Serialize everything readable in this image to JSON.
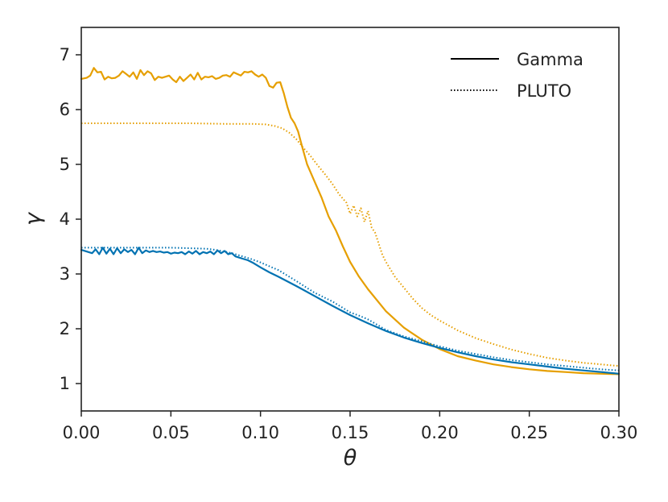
{
  "chart_data": {
    "type": "line",
    "xlabel": "θ",
    "ylabel": "γ",
    "xlim": [
      0.0,
      0.3
    ],
    "ylim": [
      0.5,
      7.5
    ],
    "grid": false,
    "legend_position": "top-right",
    "xticks": [
      0.0,
      0.05,
      0.1,
      0.15,
      0.2,
      0.25,
      0.3
    ],
    "xtick_labels": [
      "0.00",
      "0.05",
      "0.10",
      "0.15",
      "0.20",
      "0.25",
      "0.30"
    ],
    "yticks": [
      1,
      2,
      3,
      4,
      5,
      6,
      7
    ],
    "ytick_labels": [
      "1",
      "2",
      "3",
      "4",
      "5",
      "6",
      "7"
    ],
    "legend": [
      {
        "label": "Gamma",
        "style": "solid"
      },
      {
        "label": "PLUTO",
        "style": "dotted"
      }
    ],
    "colors": {
      "orange": "#e69f00",
      "blue": "#0072b2",
      "axes": "#222222"
    },
    "series": [
      {
        "color": "orange",
        "style": "solid",
        "x": [
          0.0,
          0.003,
          0.005,
          0.007,
          0.009,
          0.011,
          0.013,
          0.015,
          0.017,
          0.019,
          0.021,
          0.023,
          0.025,
          0.027,
          0.029,
          0.031,
          0.033,
          0.035,
          0.037,
          0.039,
          0.041,
          0.043,
          0.045,
          0.047,
          0.049,
          0.051,
          0.053,
          0.055,
          0.057,
          0.059,
          0.061,
          0.063,
          0.065,
          0.067,
          0.069,
          0.071,
          0.073,
          0.075,
          0.077,
          0.079,
          0.081,
          0.083,
          0.085,
          0.087,
          0.089,
          0.091,
          0.093,
          0.095,
          0.097,
          0.099,
          0.101,
          0.103,
          0.105,
          0.107,
          0.109,
          0.111,
          0.113,
          0.115,
          0.117,
          0.119,
          0.121,
          0.123,
          0.126,
          0.13,
          0.134,
          0.138,
          0.142,
          0.146,
          0.15,
          0.155,
          0.16,
          0.17,
          0.18,
          0.19,
          0.2,
          0.21,
          0.22,
          0.23,
          0.24,
          0.25,
          0.26,
          0.27,
          0.28,
          0.29,
          0.3
        ],
        "y": [
          6.56,
          6.58,
          6.62,
          6.76,
          6.68,
          6.69,
          6.55,
          6.6,
          6.57,
          6.58,
          6.62,
          6.7,
          6.65,
          6.6,
          6.68,
          6.56,
          6.72,
          6.63,
          6.7,
          6.66,
          6.54,
          6.6,
          6.58,
          6.6,
          6.62,
          6.55,
          6.5,
          6.6,
          6.52,
          6.58,
          6.64,
          6.55,
          6.67,
          6.55,
          6.6,
          6.59,
          6.61,
          6.56,
          6.58,
          6.62,
          6.63,
          6.6,
          6.68,
          6.65,
          6.62,
          6.69,
          6.68,
          6.7,
          6.64,
          6.6,
          6.64,
          6.58,
          6.43,
          6.4,
          6.49,
          6.5,
          6.3,
          6.05,
          5.85,
          5.75,
          5.6,
          5.35,
          5.0,
          4.7,
          4.4,
          4.05,
          3.8,
          3.5,
          3.22,
          2.95,
          2.72,
          2.32,
          2.02,
          1.8,
          1.63,
          1.5,
          1.42,
          1.35,
          1.3,
          1.26,
          1.23,
          1.21,
          1.19,
          1.18,
          1.17
        ]
      },
      {
        "color": "orange",
        "style": "dotted",
        "x": [
          0.0,
          0.02,
          0.04,
          0.06,
          0.08,
          0.095,
          0.103,
          0.108,
          0.112,
          0.116,
          0.12,
          0.124,
          0.128,
          0.132,
          0.136,
          0.14,
          0.144,
          0.148,
          0.15,
          0.152,
          0.154,
          0.156,
          0.158,
          0.16,
          0.162,
          0.164,
          0.166,
          0.168,
          0.17,
          0.175,
          0.18,
          0.185,
          0.19,
          0.195,
          0.2,
          0.21,
          0.22,
          0.23,
          0.24,
          0.25,
          0.26,
          0.27,
          0.28,
          0.29,
          0.3
        ],
        "y": [
          5.75,
          5.75,
          5.75,
          5.75,
          5.74,
          5.74,
          5.73,
          5.7,
          5.66,
          5.58,
          5.46,
          5.3,
          5.15,
          4.98,
          4.82,
          4.65,
          4.45,
          4.3,
          4.1,
          4.25,
          4.05,
          4.2,
          3.95,
          4.15,
          3.85,
          3.75,
          3.55,
          3.35,
          3.22,
          2.95,
          2.75,
          2.55,
          2.38,
          2.25,
          2.15,
          1.97,
          1.83,
          1.72,
          1.62,
          1.54,
          1.47,
          1.42,
          1.38,
          1.35,
          1.32
        ]
      },
      {
        "color": "blue",
        "style": "solid",
        "x": [
          0.0,
          0.002,
          0.004,
          0.006,
          0.008,
          0.01,
          0.012,
          0.014,
          0.016,
          0.018,
          0.02,
          0.022,
          0.024,
          0.026,
          0.028,
          0.03,
          0.032,
          0.034,
          0.036,
          0.038,
          0.04,
          0.042,
          0.044,
          0.046,
          0.048,
          0.05,
          0.052,
          0.054,
          0.056,
          0.058,
          0.06,
          0.062,
          0.064,
          0.066,
          0.068,
          0.07,
          0.072,
          0.074,
          0.076,
          0.078,
          0.08,
          0.082,
          0.084,
          0.086,
          0.088,
          0.09,
          0.093,
          0.096,
          0.1,
          0.105,
          0.11,
          0.12,
          0.13,
          0.14,
          0.15,
          0.16,
          0.17,
          0.18,
          0.19,
          0.2,
          0.21,
          0.22,
          0.23,
          0.24,
          0.25,
          0.26,
          0.27,
          0.28,
          0.29,
          0.3
        ],
        "y": [
          3.44,
          3.42,
          3.4,
          3.38,
          3.45,
          3.36,
          3.48,
          3.37,
          3.46,
          3.36,
          3.47,
          3.38,
          3.45,
          3.4,
          3.44,
          3.36,
          3.48,
          3.38,
          3.43,
          3.4,
          3.42,
          3.4,
          3.41,
          3.39,
          3.4,
          3.37,
          3.39,
          3.38,
          3.4,
          3.36,
          3.41,
          3.37,
          3.42,
          3.36,
          3.4,
          3.38,
          3.41,
          3.36,
          3.43,
          3.38,
          3.42,
          3.36,
          3.38,
          3.32,
          3.3,
          3.28,
          3.25,
          3.2,
          3.12,
          3.03,
          2.95,
          2.78,
          2.6,
          2.42,
          2.25,
          2.1,
          1.96,
          1.84,
          1.74,
          1.65,
          1.57,
          1.5,
          1.44,
          1.39,
          1.35,
          1.31,
          1.27,
          1.24,
          1.21,
          1.18
        ]
      },
      {
        "color": "blue",
        "style": "dotted",
        "x": [
          0.0,
          0.01,
          0.02,
          0.03,
          0.04,
          0.05,
          0.06,
          0.07,
          0.075,
          0.08,
          0.085,
          0.09,
          0.095,
          0.1,
          0.105,
          0.11,
          0.12,
          0.13,
          0.14,
          0.15,
          0.155,
          0.16,
          0.17,
          0.18,
          0.19,
          0.2,
          0.21,
          0.22,
          0.23,
          0.24,
          0.25,
          0.26,
          0.27,
          0.28,
          0.29,
          0.3
        ],
        "y": [
          3.48,
          3.48,
          3.48,
          3.48,
          3.48,
          3.48,
          3.47,
          3.46,
          3.44,
          3.41,
          3.37,
          3.32,
          3.27,
          3.21,
          3.14,
          3.07,
          2.87,
          2.66,
          2.5,
          2.3,
          2.24,
          2.17,
          1.98,
          1.86,
          1.77,
          1.68,
          1.6,
          1.54,
          1.48,
          1.43,
          1.39,
          1.35,
          1.32,
          1.29,
          1.26,
          1.24
        ]
      }
    ]
  }
}
